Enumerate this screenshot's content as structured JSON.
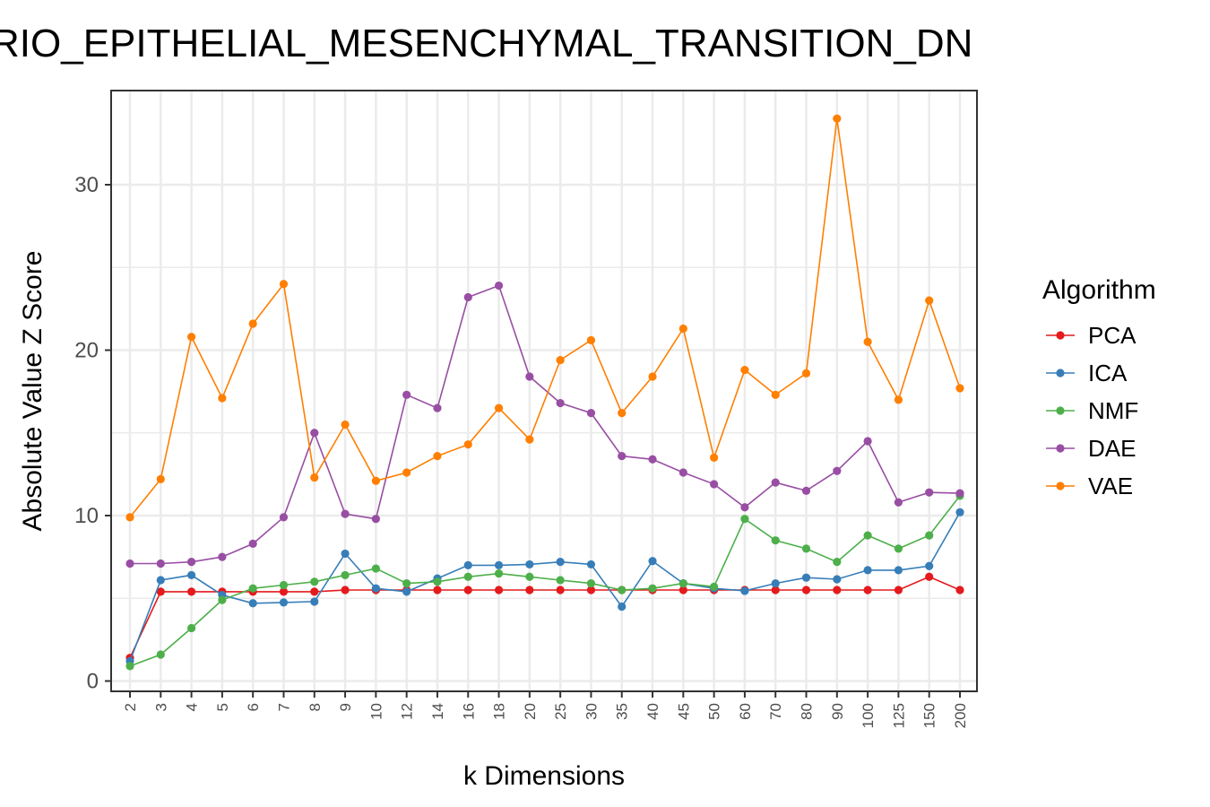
{
  "chart_data": {
    "type": "line",
    "title": "RIO_EPITHELIAL_MESENCHYMAL_TRANSITION_DN",
    "xlabel": "k Dimensions",
    "ylabel": "Absolute Value Z Score",
    "categories": [
      "2",
      "3",
      "4",
      "5",
      "6",
      "7",
      "8",
      "9",
      "10",
      "12",
      "14",
      "16",
      "18",
      "20",
      "25",
      "30",
      "35",
      "40",
      "45",
      "50",
      "60",
      "70",
      "80",
      "90",
      "100",
      "125",
      "150",
      "200"
    ],
    "yticks": [
      0,
      10,
      20,
      30
    ],
    "ylim": [
      -0.7,
      35.5
    ],
    "grid": true,
    "legend": {
      "title": "Algorithm",
      "position": "right"
    },
    "series": [
      {
        "name": "PCA",
        "color": "#e41a1c",
        "values": [
          1.4,
          5.4,
          5.4,
          5.4,
          5.4,
          5.4,
          5.4,
          5.5,
          5.5,
          5.5,
          5.5,
          5.5,
          5.5,
          5.5,
          5.5,
          5.5,
          5.5,
          5.5,
          5.5,
          5.5,
          5.5,
          5.5,
          5.5,
          5.5,
          5.5,
          5.5,
          6.3,
          5.5
        ]
      },
      {
        "name": "ICA",
        "color": "#377eb8",
        "values": [
          1.2,
          6.1,
          6.4,
          5.2,
          4.7,
          4.75,
          4.8,
          7.7,
          5.6,
          5.4,
          6.2,
          7.0,
          7.0,
          7.05,
          7.2,
          7.05,
          4.5,
          7.25,
          5.9,
          5.6,
          5.45,
          5.9,
          6.25,
          6.15,
          6.7,
          6.7,
          6.95,
          10.2
        ]
      },
      {
        "name": "NMF",
        "color": "#4daf4a",
        "values": [
          0.9,
          1.6,
          3.2,
          4.9,
          5.6,
          5.8,
          6.0,
          6.4,
          6.8,
          5.9,
          6.0,
          6.3,
          6.5,
          6.3,
          6.1,
          5.9,
          5.5,
          5.6,
          5.9,
          5.7,
          9.8,
          8.5,
          8.0,
          7.2,
          8.8,
          8.0,
          8.8,
          11.2
        ]
      },
      {
        "name": "DAE",
        "color": "#984ea3",
        "values": [
          7.1,
          7.1,
          7.2,
          7.5,
          8.3,
          9.9,
          15.0,
          10.1,
          9.8,
          17.3,
          16.5,
          23.2,
          23.9,
          18.4,
          16.8,
          16.2,
          13.6,
          13.4,
          12.6,
          11.9,
          10.5,
          12.0,
          11.5,
          12.7,
          14.5,
          10.8,
          11.4,
          11.35
        ]
      },
      {
        "name": "VAE",
        "color": "#ff7f00",
        "values": [
          9.9,
          12.2,
          20.8,
          17.1,
          21.6,
          24.0,
          12.3,
          15.5,
          12.1,
          12.6,
          13.6,
          14.3,
          16.5,
          14.6,
          19.4,
          20.6,
          16.2,
          18.4,
          21.3,
          13.5,
          18.8,
          17.3,
          18.6,
          34.0,
          20.5,
          17.0,
          23.0,
          17.7
        ]
      }
    ]
  }
}
